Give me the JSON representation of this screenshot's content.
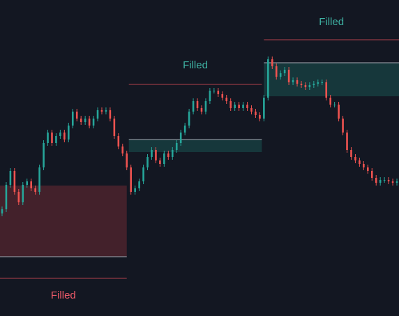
{
  "chart_data": {
    "type": "candlestick",
    "ylim": [
      0,
      453
    ],
    "up_color": "#26a69a",
    "down_color": "#ef5350",
    "values": [
      153,
      188,
      208,
      178,
      163,
      188,
      193,
      183,
      178,
      213,
      248,
      263,
      248,
      258,
      263,
      253,
      273,
      293,
      283,
      278,
      283,
      273,
      283,
      295,
      293,
      295,
      283,
      258,
      243,
      233,
      213,
      178,
      183,
      193,
      213,
      228,
      238,
      223,
      218,
      233,
      228,
      238,
      248,
      263,
      273,
      293,
      308,
      298,
      293,
      308,
      323,
      323,
      318,
      313,
      308,
      298,
      303,
      298,
      303,
      298,
      293,
      288,
      283,
      313,
      368,
      358,
      343,
      348,
      353,
      335,
      338,
      333,
      331,
      328,
      331,
      333,
      335,
      335,
      313,
      303,
      303,
      283,
      263,
      238,
      228,
      223,
      218,
      213,
      208,
      198,
      191,
      195,
      195,
      193,
      191,
      193
    ],
    "zones": [
      {
        "label": "Filled",
        "top": 187,
        "bottom": 85,
        "edge": 54,
        "color": "#f05b6a",
        "fill": "#43212b"
      },
      {
        "label": "Filled",
        "top": 253,
        "bottom": 235,
        "edge": 332,
        "color": "#3fb3a4",
        "fill": "#16373b"
      },
      {
        "label": "Filled",
        "top": 363,
        "bottom": 315,
        "edge": 396,
        "color": "#3fb3a4",
        "fill": "#16373b"
      }
    ]
  }
}
